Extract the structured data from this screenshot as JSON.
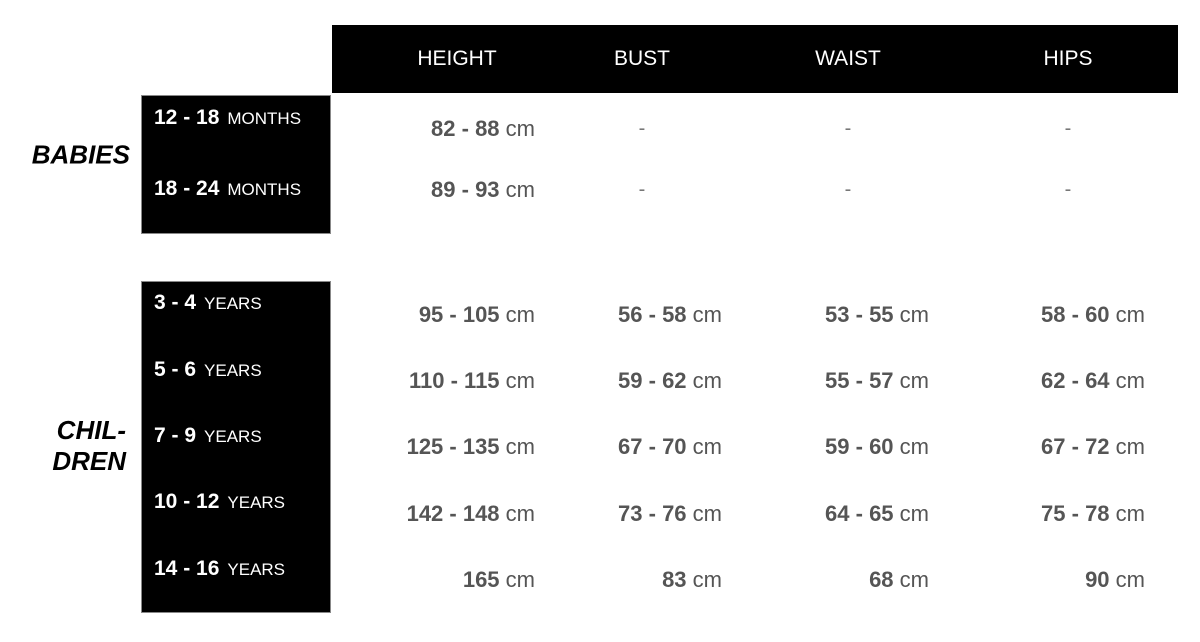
{
  "header": [
    "HEIGHT",
    "BUST",
    "WAIST",
    "HIPS"
  ],
  "groups": {
    "babies": {
      "label": "BABIES",
      "rows": [
        {
          "size": "12 - 18",
          "unit": "MONTHS",
          "values": [
            "82 - 88",
            "-",
            "-",
            "-"
          ]
        },
        {
          "size": "18 - 24",
          "unit": "MONTHS",
          "values": [
            "89 - 93",
            "-",
            "-",
            "-"
          ]
        }
      ]
    },
    "children": {
      "label_line1": "CHIL-",
      "label_line2": "DREN",
      "rows": [
        {
          "size": "3 - 4",
          "unit": "YEARS",
          "values": [
            "95 - 105",
            "56 - 58",
            "53 - 55",
            "58 - 60"
          ]
        },
        {
          "size": "5 - 6",
          "unit": "YEARS",
          "values": [
            "110 - 115",
            "59 - 62",
            "55 - 57",
            "62 - 64"
          ]
        },
        {
          "size": "7 - 9",
          "unit": "YEARS",
          "values": [
            "125 - 135",
            "67 - 70",
            "59 - 60",
            "67 - 72"
          ]
        },
        {
          "size": "10 - 12",
          "unit": "YEARS",
          "values": [
            "142 - 148",
            "73 - 76",
            "64 - 65",
            "75 - 78"
          ]
        },
        {
          "size": "14 - 16",
          "unit": "YEARS",
          "values": [
            "165",
            "83",
            "68",
            "90"
          ]
        }
      ]
    }
  },
  "unit_cm": "cm"
}
